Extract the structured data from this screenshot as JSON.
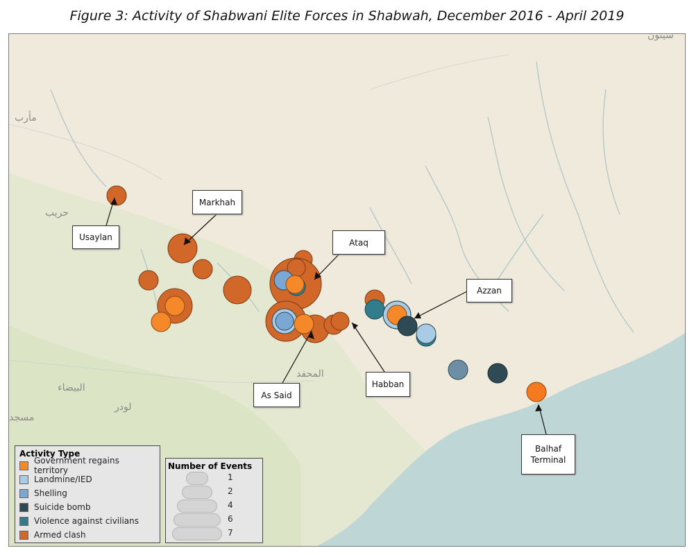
{
  "title": "Figure 3: Activity of Shabwani Elite Forces in Shabwah, December 2016 - April 2019",
  "place_labels": [
    {
      "id": "marib",
      "text": "مأرب"
    },
    {
      "id": "harib",
      "text": "حريب"
    },
    {
      "id": "bayda",
      "text": "البيضاء"
    },
    {
      "id": "lawdar",
      "text": "لودر"
    },
    {
      "id": "masjid",
      "text": "مسجد"
    },
    {
      "id": "mahfid",
      "text": "المحفد"
    },
    {
      "id": "sayun",
      "text": "سيئون"
    }
  ],
  "callouts": [
    {
      "id": "usaylan",
      "text": "Usaylan"
    },
    {
      "id": "markhah",
      "text": "Markhah"
    },
    {
      "id": "ataq",
      "text": "Ataq"
    },
    {
      "id": "azzan",
      "text": "Azzan"
    },
    {
      "id": "habban",
      "text": "Habban"
    },
    {
      "id": "as-said",
      "text": "As Said"
    },
    {
      "id": "balhaf",
      "text": "Balhaf\nTerminal"
    }
  ],
  "activity_legend": {
    "title": "Activity Type",
    "items": [
      {
        "label": "Government regains territory",
        "color": "#f5892a"
      },
      {
        "label": "Landmine/IED",
        "color": "#a9cbe6"
      },
      {
        "label": "Shelling",
        "color": "#7aa7d3"
      },
      {
        "label": "Suicide bomb",
        "color": "#2d4a55"
      },
      {
        "label": "Violence against civilians",
        "color": "#327c8c"
      },
      {
        "label": "Armed clash",
        "color": "#d2672a"
      }
    ]
  },
  "size_legend": {
    "title": "Number of Events",
    "items": [
      "1",
      "2",
      "4",
      "6",
      "7"
    ]
  },
  "colors": {
    "land": "#efeadb",
    "sea": "#bfd6d6",
    "terrain": "#dfe6cc",
    "river": "#a3bfc6"
  }
}
